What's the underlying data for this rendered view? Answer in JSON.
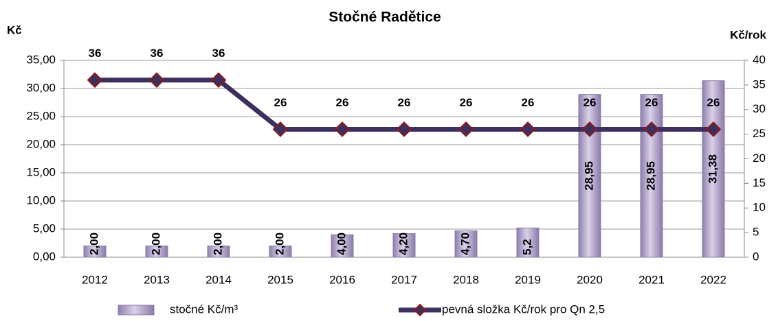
{
  "chart_data": {
    "type": "bar-line",
    "title": "Stočné  Radětice",
    "y_label": "Kč",
    "y2_label": "Kč/rok",
    "categories": [
      "2012",
      "2013",
      "2014",
      "2015",
      "2016",
      "2017",
      "2018",
      "2019",
      "2020",
      "2021",
      "2022"
    ],
    "series": [
      {
        "name": "stočné Kč/m³",
        "type": "bar",
        "color": "#b9acd3",
        "values": [
          2,
          2,
          2,
          2,
          4,
          4.2,
          4.7,
          5.2,
          28.95,
          28.95,
          31.38
        ],
        "value_labels": [
          "2,00",
          "2,00",
          "2,00",
          "2,00",
          "4,00",
          "4,20",
          "4,70",
          "5,2",
          "28,95",
          "28,95",
          "31,38"
        ]
      },
      {
        "name": "pevná složka Kč/rok pro Qn 2,5",
        "type": "line",
        "axis": "y2",
        "color": "#3d2f5e",
        "marker_color": "#8b1a1a",
        "values": [
          36,
          36,
          36,
          26,
          26,
          26,
          26,
          26,
          26,
          26,
          26
        ]
      }
    ],
    "ylim": [
      0,
      35
    ],
    "yticks": [
      {
        "value": 0,
        "label": "0,00"
      },
      {
        "value": 5,
        "label": "5,00"
      },
      {
        "value": 10,
        "label": "10,00"
      },
      {
        "value": 15,
        "label": "15,00"
      },
      {
        "value": 20,
        "label": "20,00"
      },
      {
        "value": 25,
        "label": "25,00"
      },
      {
        "value": 30,
        "label": "30,00"
      },
      {
        "value": 35,
        "label": "35,00"
      }
    ],
    "y2lim": [
      0,
      40
    ],
    "y2ticks": [
      0,
      5,
      10,
      15,
      20,
      25,
      30,
      35,
      40
    ],
    "grid": true,
    "legend": "bottom"
  }
}
